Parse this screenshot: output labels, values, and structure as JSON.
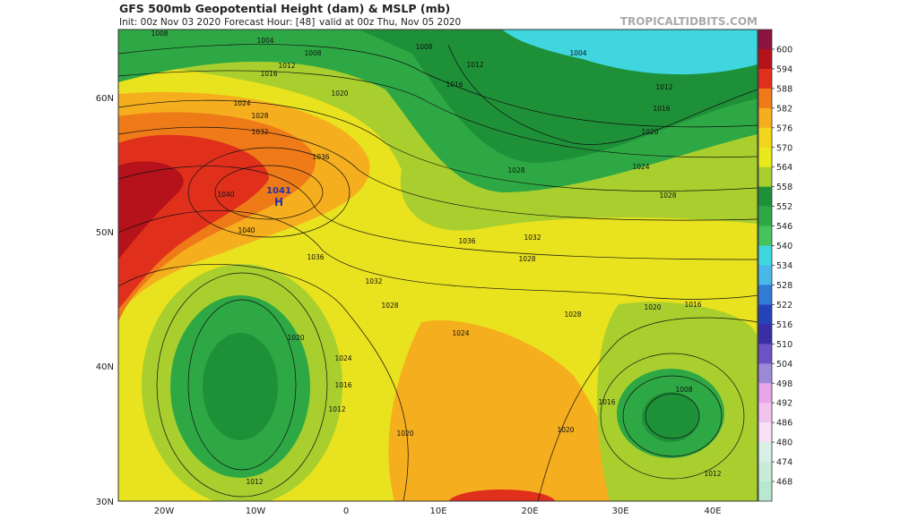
{
  "header": {
    "title": "GFS 500mb Geopotential Height (dam) & MSLP (mb)",
    "init": "Init: 00z Nov 03 2020",
    "forecast_hour": "Forecast Hour: [48]",
    "valid": "valid at 00z Thu, Nov 05 2020",
    "watermark": "TROPICALTIDBITS.COM"
  },
  "map": {
    "lat_labels": [
      "60N",
      "50N",
      "40N",
      "30N"
    ],
    "lon_labels": [
      "20W",
      "10W",
      "0",
      "10E",
      "20E",
      "30E",
      "40E"
    ],
    "high": {
      "pressure": "1041",
      "symbol": "H"
    },
    "isobar_labels": [
      "1008",
      "1004",
      "1008",
      "1012",
      "1016",
      "1020",
      "1024",
      "1028",
      "1032",
      "1036",
      "1040",
      "1040",
      "1036",
      "1032",
      "1028",
      "1036",
      "1032",
      "1028",
      "1028",
      "1020",
      "1016",
      "1024",
      "1020",
      "1024",
      "1016",
      "1012",
      "1020",
      "1020",
      "1016",
      "1008",
      "1012",
      "1012",
      "1004",
      "1008",
      "1012",
      "1016",
      "1012",
      "1016",
      "1020",
      "1024",
      "1028",
      "1028"
    ]
  },
  "colorbar": {
    "levels": [
      600,
      594,
      588,
      582,
      576,
      570,
      564,
      558,
      552,
      546,
      540,
      534,
      528,
      522,
      516,
      510,
      504,
      498,
      492,
      486,
      480,
      474,
      468
    ],
    "colors": [
      "#8c1240",
      "#b5121b",
      "#e0301c",
      "#ef7a18",
      "#f5ae1e",
      "#f2d61c",
      "#e9e91c",
      "#a9cf2e",
      "#1e9138",
      "#2ea844",
      "#46c35a",
      "#3fd6e0",
      "#49b8e8",
      "#2f7bd6",
      "#2443b8",
      "#3a2ea6",
      "#6c52c4",
      "#9c8ad8",
      "#e6a6e8",
      "#f3c3f0",
      "#f7e0f5",
      "#d9f0e6",
      "#c8ecd8",
      "#b8e8cf"
    ]
  }
}
